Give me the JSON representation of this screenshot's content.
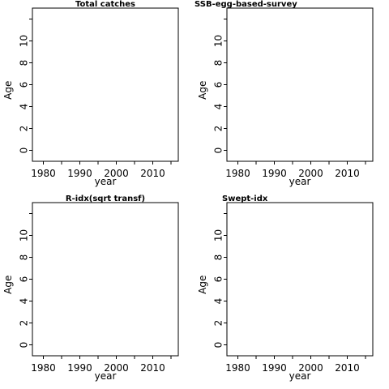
{
  "chart_data": [
    {
      "type": "scatter",
      "title": "Total catches",
      "xlabel": "year",
      "ylabel": "Age",
      "xticks": [
        1980,
        1990,
        2000,
        2010
      ],
      "yticks": [
        0,
        2,
        4,
        6,
        8,
        10
      ],
      "xlim": [
        1977,
        2017
      ],
      "ylim": [
        -1,
        13
      ],
      "series": []
    },
    {
      "type": "scatter",
      "title": "SSB-egg-based-survey",
      "xlabel": "year",
      "ylabel": "Age",
      "xticks": [
        1980,
        1990,
        2000,
        2010
      ],
      "yticks": [
        0,
        2,
        4,
        6,
        8,
        10
      ],
      "xlim": [
        1977,
        2017
      ],
      "ylim": [
        -1,
        13
      ],
      "series": []
    },
    {
      "type": "scatter",
      "title": "R-idx(sqrt transf)",
      "xlabel": "year",
      "ylabel": "Age",
      "xticks": [
        1980,
        1990,
        2000,
        2010
      ],
      "yticks": [
        0,
        2,
        4,
        6,
        8,
        10
      ],
      "xlim": [
        1977,
        2017
      ],
      "ylim": [
        -1,
        13
      ],
      "series": []
    },
    {
      "type": "scatter",
      "title": "Swept-idx",
      "xlabel": "year",
      "ylabel": "Age",
      "xticks": [
        1980,
        1990,
        2000,
        2010
      ],
      "yticks": [
        0,
        2,
        4,
        6,
        8,
        10
      ],
      "xlim": [
        1977,
        2017
      ],
      "ylim": [
        -1,
        13
      ],
      "series": []
    }
  ]
}
